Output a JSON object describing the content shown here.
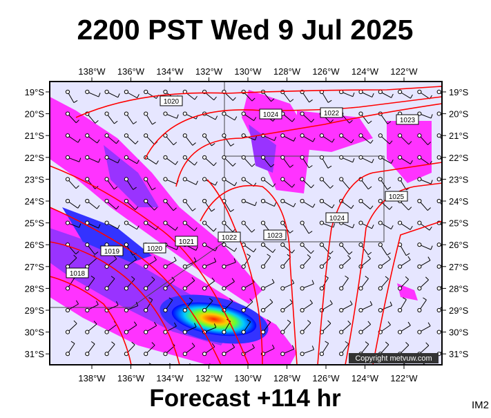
{
  "header": {
    "title": "2200 PST Wed 9 Jul 2025"
  },
  "map": {
    "longitude_labels": [
      "138°W",
      "136°W",
      "134°W",
      "132°W",
      "130°W",
      "128°W",
      "126°W",
      "124°W",
      "122°W"
    ],
    "latitude_labels": [
      "19°S",
      "20°S",
      "21°S",
      "22°S",
      "23°S",
      "24°S",
      "25°S",
      "26°S",
      "27°S",
      "28°S",
      "29°S",
      "30°S",
      "31°S"
    ],
    "isobar_labels": [
      "1020",
      "1024",
      "1022",
      "1023",
      "1025",
      "1024",
      "1023",
      "1022",
      "1021",
      "1020",
      "1019",
      "1018"
    ],
    "copyright": "Copyright metvuw.com"
  },
  "footer": {
    "forecast": "Forecast +114 hr",
    "code": "IM2"
  }
}
